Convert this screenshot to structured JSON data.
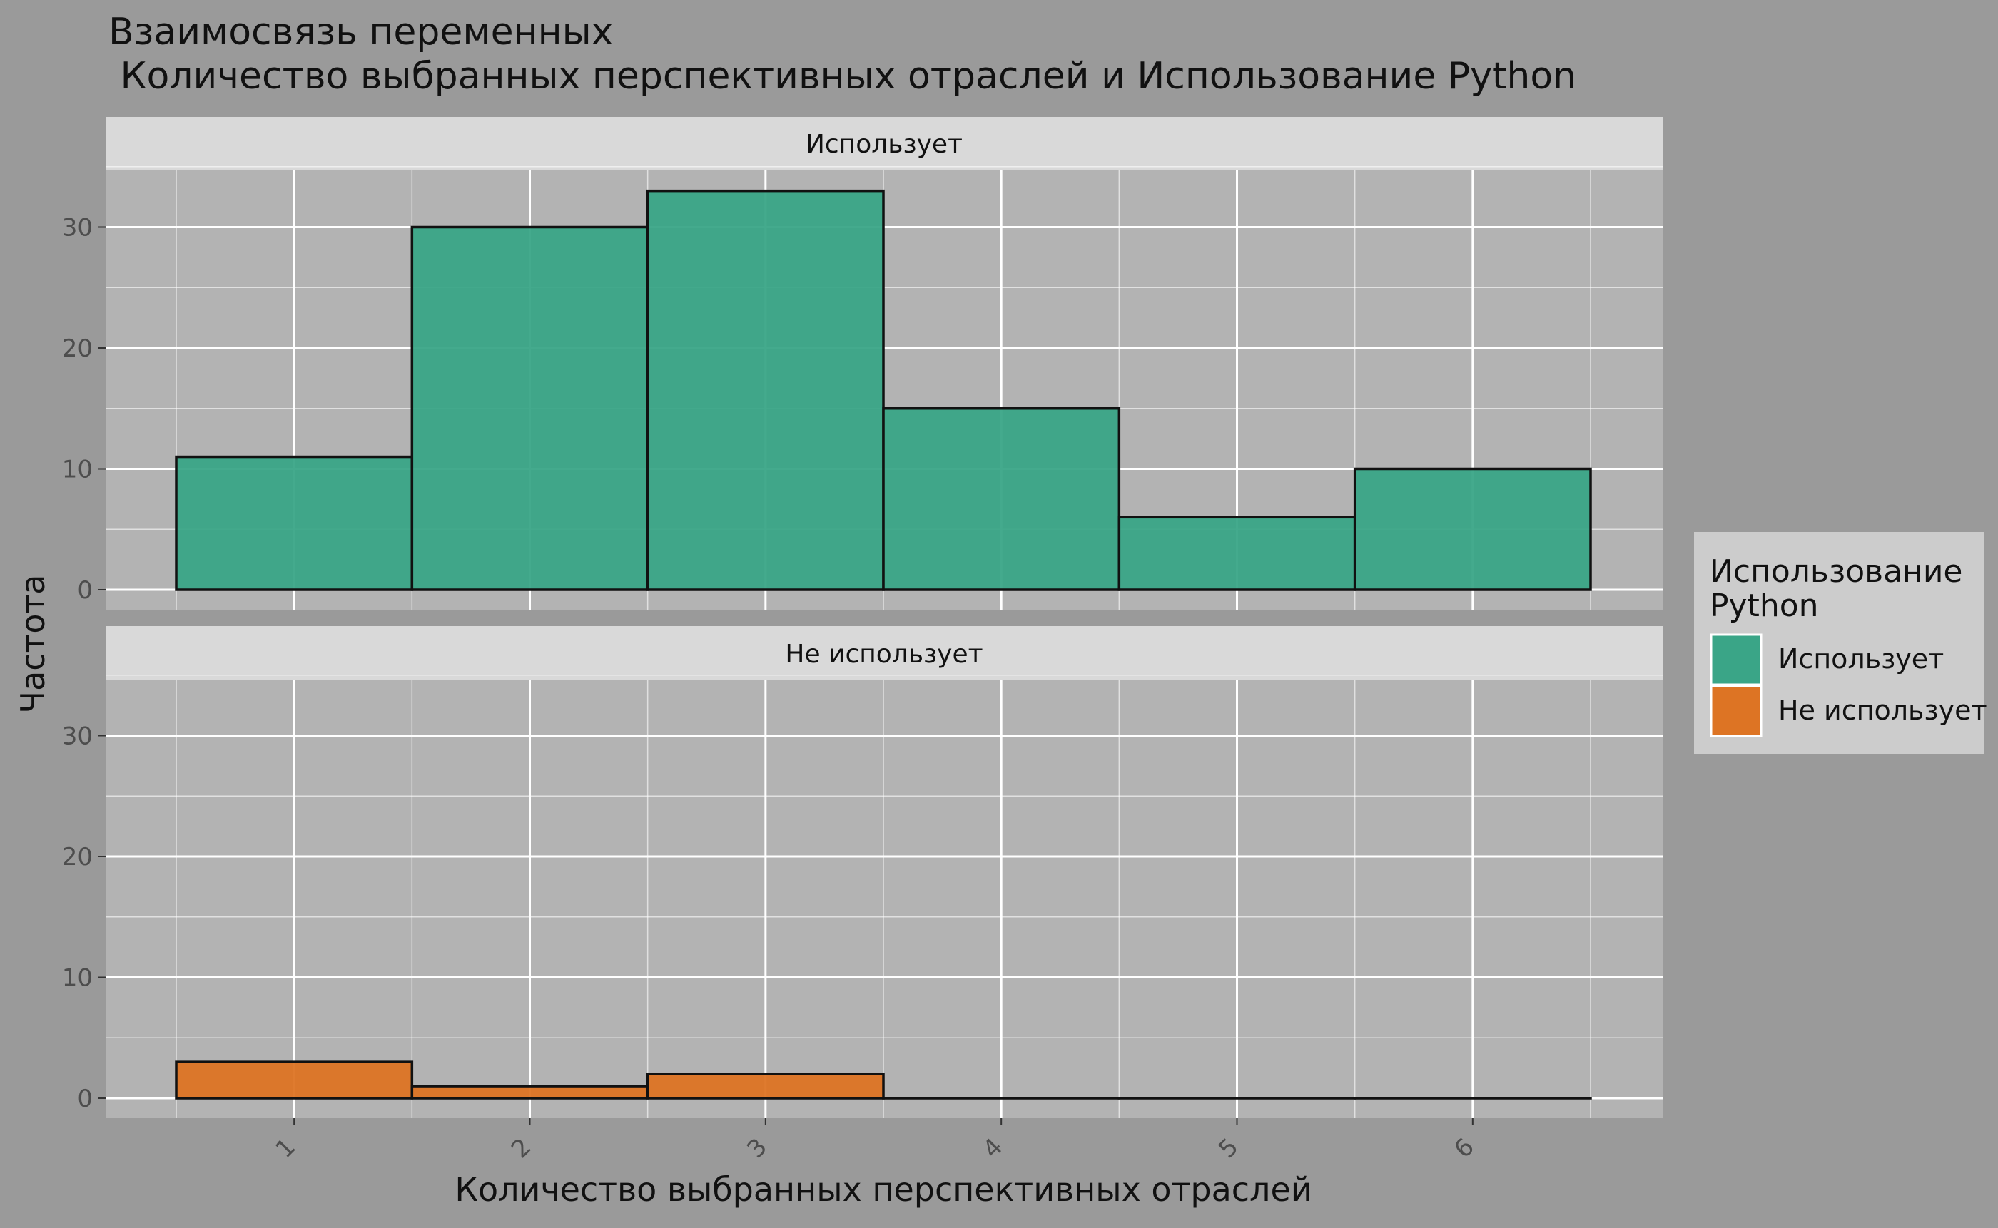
{
  "chart_data": {
    "type": "bar",
    "title_line1": "Взаимосвязь переменных",
    "title_line2": " Количество выбранных перспективных отраслей и Использование Python",
    "xlabel": "Количество выбранных перспективных отраслей",
    "ylabel": "Частота",
    "categories": [
      "1",
      "2",
      "3",
      "4",
      "5",
      "6"
    ],
    "ylim": [
      0,
      35
    ],
    "yticks": [
      0,
      10,
      20,
      30
    ],
    "grid": true,
    "legend_position": "right",
    "legend_title": "Использование Python",
    "legend_title_line1": "Использование",
    "legend_title_line2": "Python",
    "panels": [
      {
        "name": "Использует",
        "color": "#3aa587",
        "values": [
          11,
          30,
          33,
          15,
          6,
          10
        ]
      },
      {
        "name": "Не использует",
        "color": "#dd7424",
        "values": [
          3,
          1,
          2,
          0,
          0,
          0
        ]
      }
    ],
    "colors": {
      "background": "#9a9a9a",
      "panel": "#b3b3b3",
      "strip": "#d9d9d9",
      "gridline": "#ffffff",
      "bar_outline": "#111111",
      "text": "#111111",
      "tick_text": "#4d4d4d"
    }
  }
}
